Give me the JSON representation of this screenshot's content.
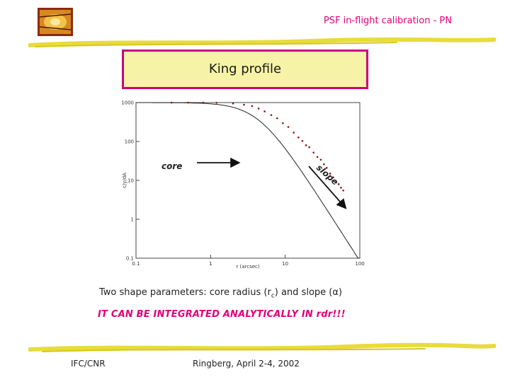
{
  "header": {
    "title": "PSF in-flight calibration - PN"
  },
  "title_box": {
    "text": "King profile"
  },
  "annotations": {
    "core": "core",
    "slope": "slope"
  },
  "body": {
    "params_prefix": "Two shape parameters: core radius (r",
    "params_sub": "c",
    "params_suffix": ") and slope (α)",
    "analytic": "IT CAN BE INTEGRATED ANALYTICALLY IN rdr!!!"
  },
  "footer": {
    "left": "IFC/CNR",
    "center": "Ringberg, April 2-4, 2002"
  },
  "colors": {
    "accent": "#e0007a",
    "box_fill": "#f7f3a6",
    "box_border": "#c8007e",
    "stroke": "#e8dc3a"
  },
  "chart_data": {
    "type": "scatter",
    "xscale": "log",
    "yscale": "log",
    "xlim": [
      0.1,
      100
    ],
    "ylim": [
      0.1,
      1000
    ],
    "xlabel": "r (arcsec)",
    "ylabel": "c/y/dA",
    "xticks": [
      "0.1",
      "1",
      "10",
      "100"
    ],
    "yticks": [
      "1000",
      "100",
      "10",
      "1",
      "0.1"
    ],
    "model_params": {
      "core_radius": 4.4,
      "slope": 1.5,
      "amplitude": 1000
    },
    "series": [
      {
        "name": "",
        "x": [
          0.3,
          0.5,
          0.8,
          1.2,
          2,
          2.8,
          3.6,
          4.4,
          5.3,
          6.5,
          7.8,
          9.3,
          11,
          13,
          15,
          17,
          19,
          21,
          24,
          27,
          30,
          33,
          36,
          40,
          44,
          48,
          52,
          56,
          60
        ],
        "y": [
          999,
          999,
          997,
          989,
          949,
          880,
          812,
          703,
          593,
          477,
          395,
          295,
          236,
          169,
          127,
          103,
          80,
          71,
          52,
          40,
          34,
          26,
          21,
          15,
          12,
          9.5,
          8,
          6.5,
          5.5
        ]
      }
    ]
  }
}
